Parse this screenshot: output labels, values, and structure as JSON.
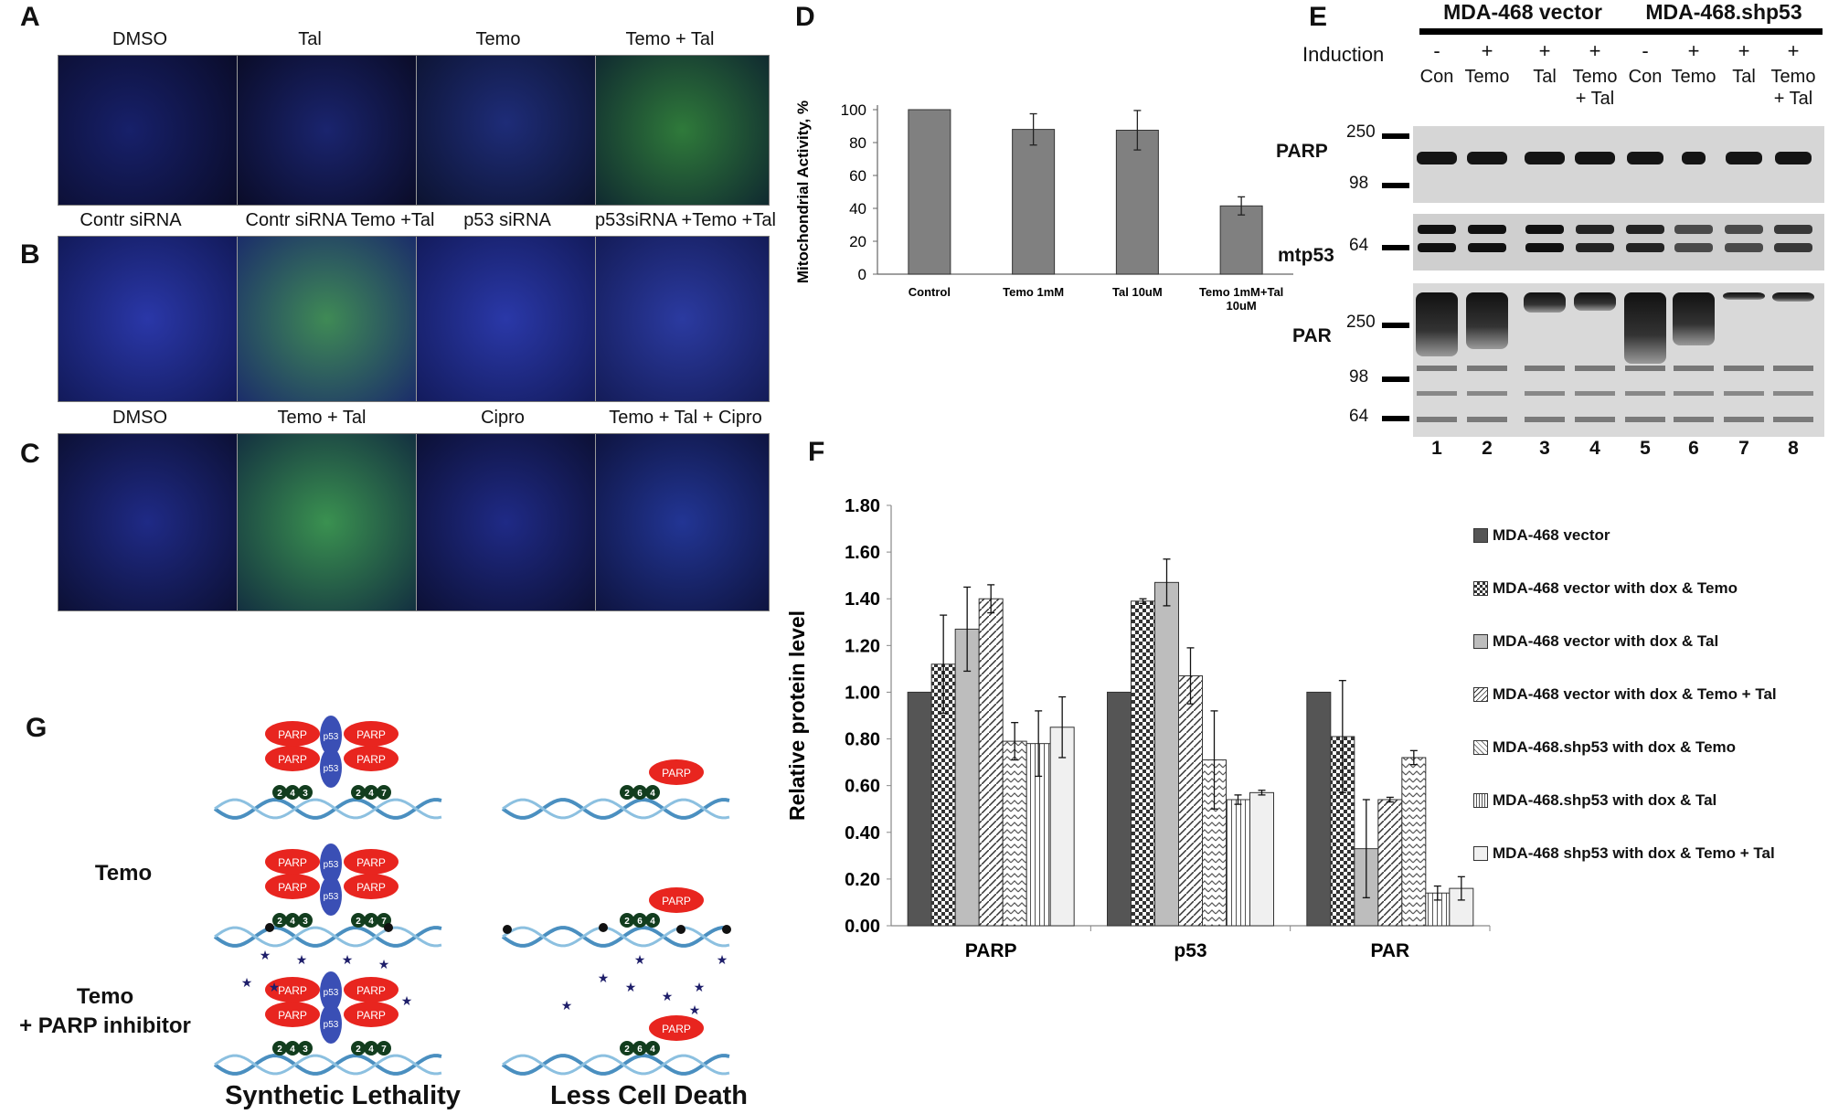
{
  "panels": {
    "A": "A",
    "B": "B",
    "C": "C",
    "D": "D",
    "E": "E",
    "F": "F",
    "G": "G"
  },
  "micro": {
    "A": [
      "DMSO",
      "Tal",
      "Temo",
      "Temo + Tal"
    ],
    "B": [
      "Contr siRNA",
      "Contr siRNA Temo +Tal",
      "p53 siRNA",
      "p53siRNA +Temo +Tal"
    ],
    "C": [
      "DMSO",
      "Temo + Tal",
      "Cipro",
      "Temo + Tal + Cipro"
    ]
  },
  "blot": {
    "group1": "MDA-468 vector",
    "group2": "MDA-468.shp53",
    "induction": "Induction",
    "signs": [
      "-",
      "+",
      "+",
      "+",
      "-",
      "+",
      "+",
      "+"
    ],
    "conditions": [
      "Con",
      "Temo",
      "Tal",
      "Temo\n+ Tal",
      "Con",
      "Temo",
      "Tal",
      "Temo\n+ Tal"
    ],
    "rows": [
      "PARP",
      "mtp53",
      "PAR"
    ],
    "kda": {
      "parp_top": "250",
      "parp_bottom": "98",
      "mtp53": "64",
      "par_top": "250",
      "par_mid": "98",
      "par_bottom": "64"
    },
    "lanes": [
      "1",
      "2",
      "3",
      "4",
      "5",
      "6",
      "7",
      "8"
    ]
  },
  "legend": [
    {
      "label": "MDA-468 vector",
      "color": "#555555",
      "pattern": "solid"
    },
    {
      "label": "MDA-468 vector with dox & Temo",
      "color": "#ffffff",
      "pattern": "check"
    },
    {
      "label": "MDA-468 vector with dox & Tal",
      "color": "#bdbdbd",
      "pattern": "solid"
    },
    {
      "label": "MDA-468 vector with dox & Temo + Tal",
      "color": "#ffffff",
      "pattern": "diag"
    },
    {
      "label": "MDA-468.shp53 with dox & Temo",
      "color": "#ffffff",
      "pattern": "zigzag"
    },
    {
      "label": "MDA-468.shp53 with dox & Tal",
      "color": "#ffffff",
      "pattern": "vert"
    },
    {
      "label": "MDA-468 shp53 with dox & Temo + Tal",
      "color": "#f0f0f0",
      "pattern": "solid"
    }
  ],
  "diagram": {
    "row_labels": [
      "Temo",
      "Temo\n+ PARP inhibitor"
    ],
    "left_caption": "Synthetic Lethality",
    "right_caption": "Less Cell Death",
    "parp": "PARP",
    "p53": "p53"
  },
  "chart_data": [
    {
      "type": "bar",
      "id": "D",
      "title": "",
      "ylabel": "Mitochondrial Activity, %",
      "xlabel": "",
      "categories": [
        "Control",
        "Temo 1mM",
        "Tal 10uM",
        "Temo 1mM+Tal 10uM"
      ],
      "category_lines": [
        [
          "Control"
        ],
        [
          "Temo 1mM"
        ],
        [
          "Tal 10uM"
        ],
        [
          "Temo 1mM+Tal",
          "10uM"
        ]
      ],
      "values": [
        100,
        88,
        87.5,
        41.5
      ],
      "errors": [
        0,
        9.5,
        12,
        5.5
      ],
      "ylim": [
        0,
        100
      ],
      "yticks": [
        0,
        20,
        40,
        60,
        80,
        100
      ],
      "bar_color": "#808080"
    },
    {
      "type": "bar",
      "id": "F",
      "ylabel": "Relative protein level",
      "xlabel": "",
      "categories": [
        "PARP",
        "p53",
        "PAR"
      ],
      "ylim": [
        0,
        1.8
      ],
      "yticks": [
        "0.00",
        "0.20",
        "0.40",
        "0.60",
        "0.80",
        "1.00",
        "1.20",
        "1.40",
        "1.60",
        "1.80"
      ],
      "series": [
        {
          "name": "MDA-468 vector",
          "values": [
            1.0,
            1.0,
            1.0
          ],
          "errors": [
            0,
            0,
            0
          ]
        },
        {
          "name": "MDA-468 vector with dox & Temo",
          "values": [
            1.12,
            1.39,
            0.81
          ],
          "errors": [
            0.21,
            0.01,
            0.24
          ]
        },
        {
          "name": "MDA-468 vector with dox & Tal",
          "values": [
            1.27,
            1.47,
            0.33
          ],
          "errors": [
            0.18,
            0.1,
            0.21
          ]
        },
        {
          "name": "MDA-468 vector with dox & Temo + Tal",
          "values": [
            1.4,
            1.07,
            0.54
          ],
          "errors": [
            0.06,
            0.12,
            0.01
          ]
        },
        {
          "name": "MDA-468.shp53 with dox & Temo",
          "values": [
            0.79,
            0.71,
            0.72
          ],
          "errors": [
            0.08,
            0.21,
            0.03
          ]
        },
        {
          "name": "MDA-468.shp53 with dox & Tal",
          "values": [
            0.78,
            0.54,
            0.14
          ],
          "errors": [
            0.14,
            0.02,
            0.03
          ]
        },
        {
          "name": "MDA-468 shp53 with dox & Temo + Tal",
          "values": [
            0.85,
            0.57,
            0.16
          ],
          "errors": [
            0.13,
            0.01,
            0.05
          ]
        }
      ]
    }
  ]
}
